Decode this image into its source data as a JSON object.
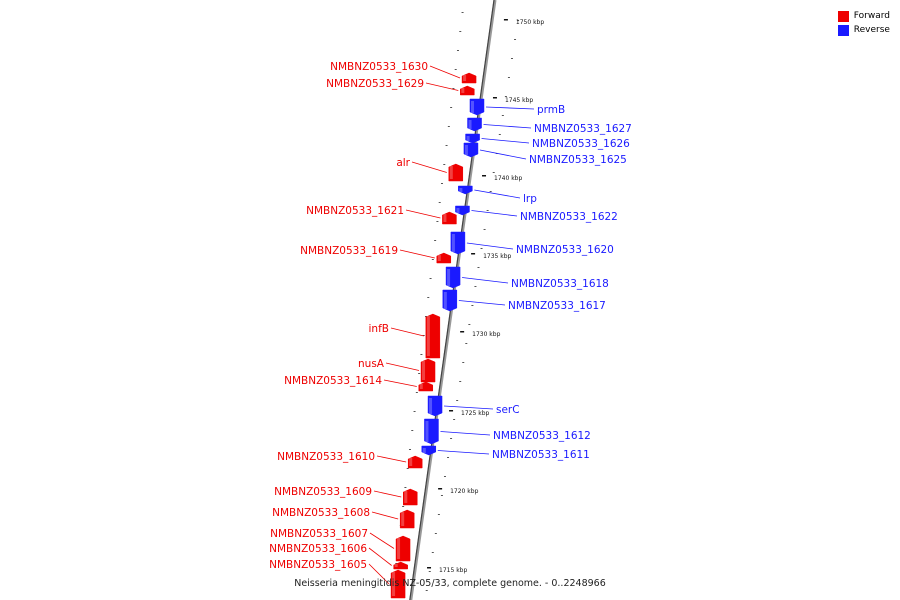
{
  "legend": {
    "forward": {
      "label": "Forward",
      "color": "#ee0000"
    },
    "reverse": {
      "label": "Reverse",
      "color": "#1a1aff"
    }
  },
  "caption": "Neisseria meningitidis NZ-05/33, complete genome. - 0..2248966",
  "ticks": [
    {
      "label": "1750 kbp",
      "kbp": 1750
    },
    {
      "label": "1745 kbp",
      "kbp": 1745
    },
    {
      "label": "1740 kbp",
      "kbp": 1740
    },
    {
      "label": "1735 kbp",
      "kbp": 1735
    },
    {
      "label": "1730 kbp",
      "kbp": 1730
    },
    {
      "label": "1725 kbp",
      "kbp": 1725
    },
    {
      "label": "1720 kbp",
      "kbp": 1720
    },
    {
      "label": "1715 kbp",
      "kbp": 1715
    }
  ],
  "genes": [
    {
      "name": "NMBNZ0533_1630",
      "strand": "forward"
    },
    {
      "name": "NMBNZ0533_1629",
      "strand": "forward"
    },
    {
      "name": "prmB",
      "strand": "reverse"
    },
    {
      "name": "NMBNZ0533_1627",
      "strand": "reverse"
    },
    {
      "name": "NMBNZ0533_1626",
      "strand": "reverse"
    },
    {
      "name": "NMBNZ0533_1625",
      "strand": "reverse"
    },
    {
      "name": "alr",
      "strand": "forward"
    },
    {
      "name": "lrp",
      "strand": "reverse"
    },
    {
      "name": "NMBNZ0533_1622",
      "strand": "reverse"
    },
    {
      "name": "NMBNZ0533_1621",
      "strand": "forward"
    },
    {
      "name": "NMBNZ0533_1620",
      "strand": "reverse"
    },
    {
      "name": "NMBNZ0533_1619",
      "strand": "forward"
    },
    {
      "name": "NMBNZ0533_1618",
      "strand": "reverse"
    },
    {
      "name": "NMBNZ0533_1617",
      "strand": "reverse"
    },
    {
      "name": "infB",
      "strand": "forward"
    },
    {
      "name": "nusA",
      "strand": "forward"
    },
    {
      "name": "NMBNZ0533_1614",
      "strand": "forward"
    },
    {
      "name": "serC",
      "strand": "reverse"
    },
    {
      "name": "NMBNZ0533_1612",
      "strand": "reverse"
    },
    {
      "name": "NMBNZ0533_1611",
      "strand": "reverse"
    },
    {
      "name": "NMBNZ0533_1610",
      "strand": "forward"
    },
    {
      "name": "NMBNZ0533_1609",
      "strand": "forward"
    },
    {
      "name": "NMBNZ0533_1608",
      "strand": "forward"
    },
    {
      "name": "NMBNZ0533_1607",
      "strand": "forward"
    },
    {
      "name": "NMBNZ0533_1606",
      "strand": "forward"
    },
    {
      "name": "NMBNZ0533_1605",
      "strand": "forward"
    }
  ]
}
